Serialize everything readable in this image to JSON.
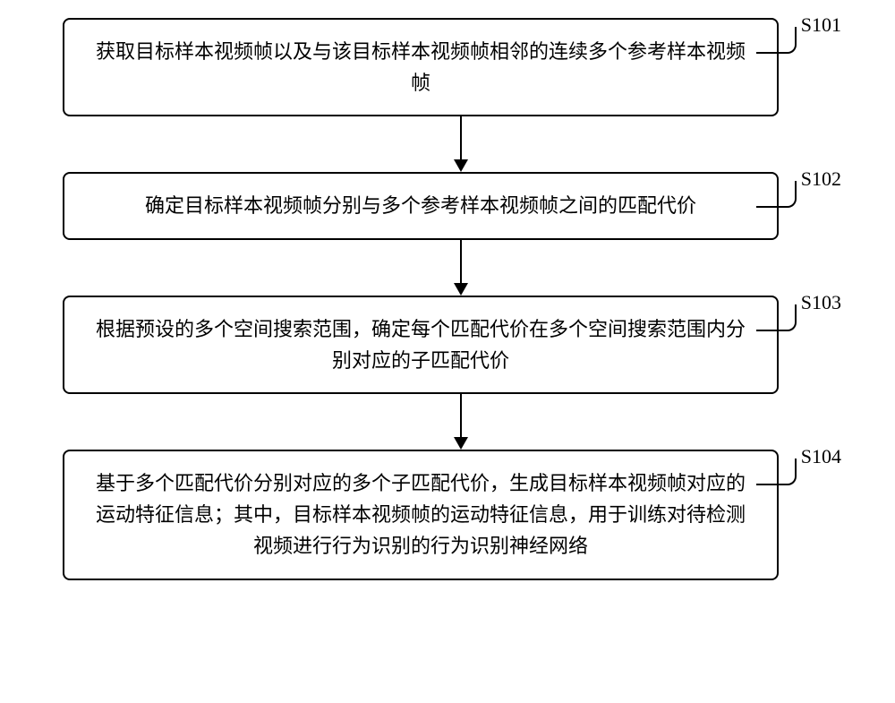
{
  "flowchart": {
    "type": "flowchart",
    "background_color": "#ffffff",
    "box_border_color": "#000000",
    "box_border_width": 2,
    "box_border_radius": 8,
    "arrow_color": "#000000",
    "text_color": "#000000",
    "font_size": 22,
    "font_family": "SimSun",
    "steps": [
      {
        "id": "S101",
        "text": "获取目标样本视频帧以及与该目标样本视频帧相邻的连续多个参考样本视频帧"
      },
      {
        "id": "S102",
        "text": "确定目标样本视频帧分别与多个参考样本视频帧之间的匹配代价"
      },
      {
        "id": "S103",
        "text": "根据预设的多个空间搜索范围，确定每个匹配代价在多个空间搜索范围内分别对应的子匹配代价"
      },
      {
        "id": "S104",
        "text": "基于多个匹配代价分别对应的多个子匹配代价，生成目标样本视频帧对应的运动特征信息；其中，目标样本视频帧的运动特征信息，用于训练对待检测视频进行行为识别的行为识别神经网络"
      }
    ]
  }
}
